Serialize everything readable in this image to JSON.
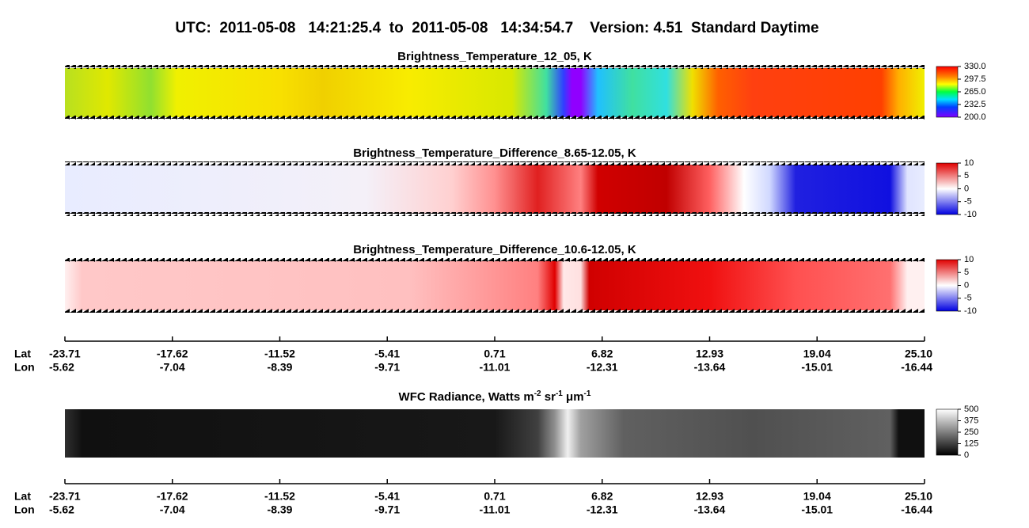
{
  "chart_data": [
    {
      "type": "heatmap",
      "title": "UTC:  2011-05-08   14:21:25.4  to  2011-05-08   14:34:54.7    Version: 4.51  Standard Daytime",
      "panel_title": "Brightness_Temperature_12_05, K",
      "clim": [
        200,
        330
      ],
      "cticks": [
        {
          "value": 200,
          "label": "200.0"
        },
        232.5,
        {
          "value": 265,
          "label": "265.0"
        },
        297.5,
        {
          "value": 330,
          "label": "330.0"
        }
      ]
    },
    {
      "type": "heatmap",
      "panel_title": "Brightness_Temperature_Difference_8.65-12.05, K",
      "clim": [
        -10,
        10
      ],
      "cticks": [
        -10,
        -5,
        0,
        5,
        10
      ]
    },
    {
      "type": "heatmap",
      "panel_title": "Brightness_Temperature_Difference_10.6-12.05, K",
      "clim": [
        -10,
        10
      ],
      "cticks": [
        -10,
        -5,
        0,
        5,
        10
      ]
    },
    {
      "type": "axis",
      "row_labels": [
        "Lat",
        "Lon"
      ],
      "lat": [
        -23.71,
        -17.62,
        -11.52,
        -5.41,
        0.71,
        6.82,
        12.93,
        19.04,
        {
          "value": 25.1,
          "label": "25.10"
        }
      ],
      "lon": [
        -5.62,
        -7.04,
        -8.39,
        -9.71,
        -11.01,
        -12.31,
        -13.64,
        -15.01,
        -16.44
      ]
    },
    {
      "type": "heatmap",
      "panel_title_parts": [
        "WFC Radiance, Watts m",
        "-2",
        " sr",
        "-1",
        " μm",
        "-1"
      ],
      "clim": [
        0,
        500
      ],
      "cticks": [
        0,
        125,
        250,
        375,
        500
      ]
    },
    {
      "type": "axis",
      "row_labels": [
        "Lat",
        "Lon"
      ],
      "lat": [
        -23.71,
        -17.62,
        -11.52,
        -5.41,
        0.71,
        6.82,
        12.93,
        19.04,
        {
          "value": 25.1,
          "label": "25.10"
        }
      ],
      "lon": [
        -5.62,
        -7.04,
        -8.39,
        -9.71,
        -11.01,
        -12.31,
        -13.64,
        -15.01,
        -16.44
      ]
    }
  ]
}
